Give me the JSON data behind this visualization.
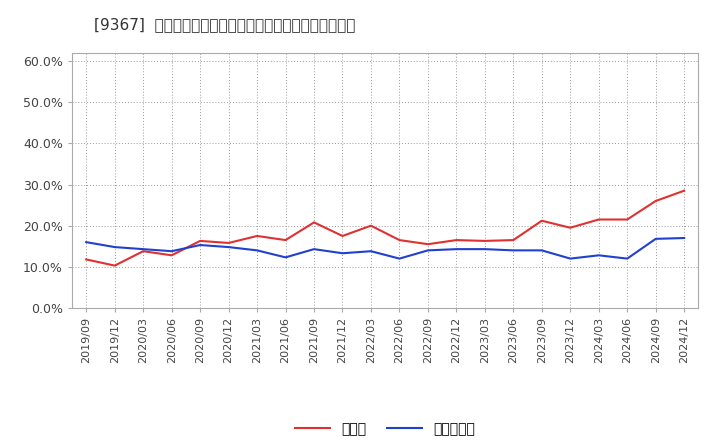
{
  "title": "[9367]  現預金、有利子負債の総資産に対する比率の推移",
  "x_labels": [
    "2019/09",
    "2019/12",
    "2020/03",
    "2020/06",
    "2020/09",
    "2020/12",
    "2021/03",
    "2021/06",
    "2021/09",
    "2021/12",
    "2022/03",
    "2022/06",
    "2022/09",
    "2022/12",
    "2023/03",
    "2023/06",
    "2023/09",
    "2023/12",
    "2024/03",
    "2024/06",
    "2024/09",
    "2024/12"
  ],
  "cash_ratio": [
    0.118,
    0.103,
    0.138,
    0.128,
    0.163,
    0.158,
    0.175,
    0.165,
    0.208,
    0.175,
    0.2,
    0.165,
    0.155,
    0.165,
    0.163,
    0.165,
    0.212,
    0.195,
    0.215,
    0.215,
    0.26,
    0.285
  ],
  "debt_ratio": [
    0.16,
    0.148,
    0.143,
    0.138,
    0.153,
    0.148,
    0.14,
    0.123,
    0.143,
    0.133,
    0.138,
    0.12,
    0.14,
    0.143,
    0.143,
    0.14,
    0.14,
    0.12,
    0.128,
    0.12,
    0.168,
    0.17
  ],
  "cash_color": "#e03030",
  "debt_color": "#2040d0",
  "background_color": "#ffffff",
  "grid_color": "#999999",
  "ylim": [
    0.0,
    0.62
  ],
  "yticks": [
    0.0,
    0.1,
    0.2,
    0.3,
    0.4,
    0.5,
    0.6
  ],
  "legend_cash": "現預金",
  "legend_debt": "有利子負債",
  "title_fontsize": 11,
  "tick_fontsize": 8,
  "legend_fontsize": 10
}
